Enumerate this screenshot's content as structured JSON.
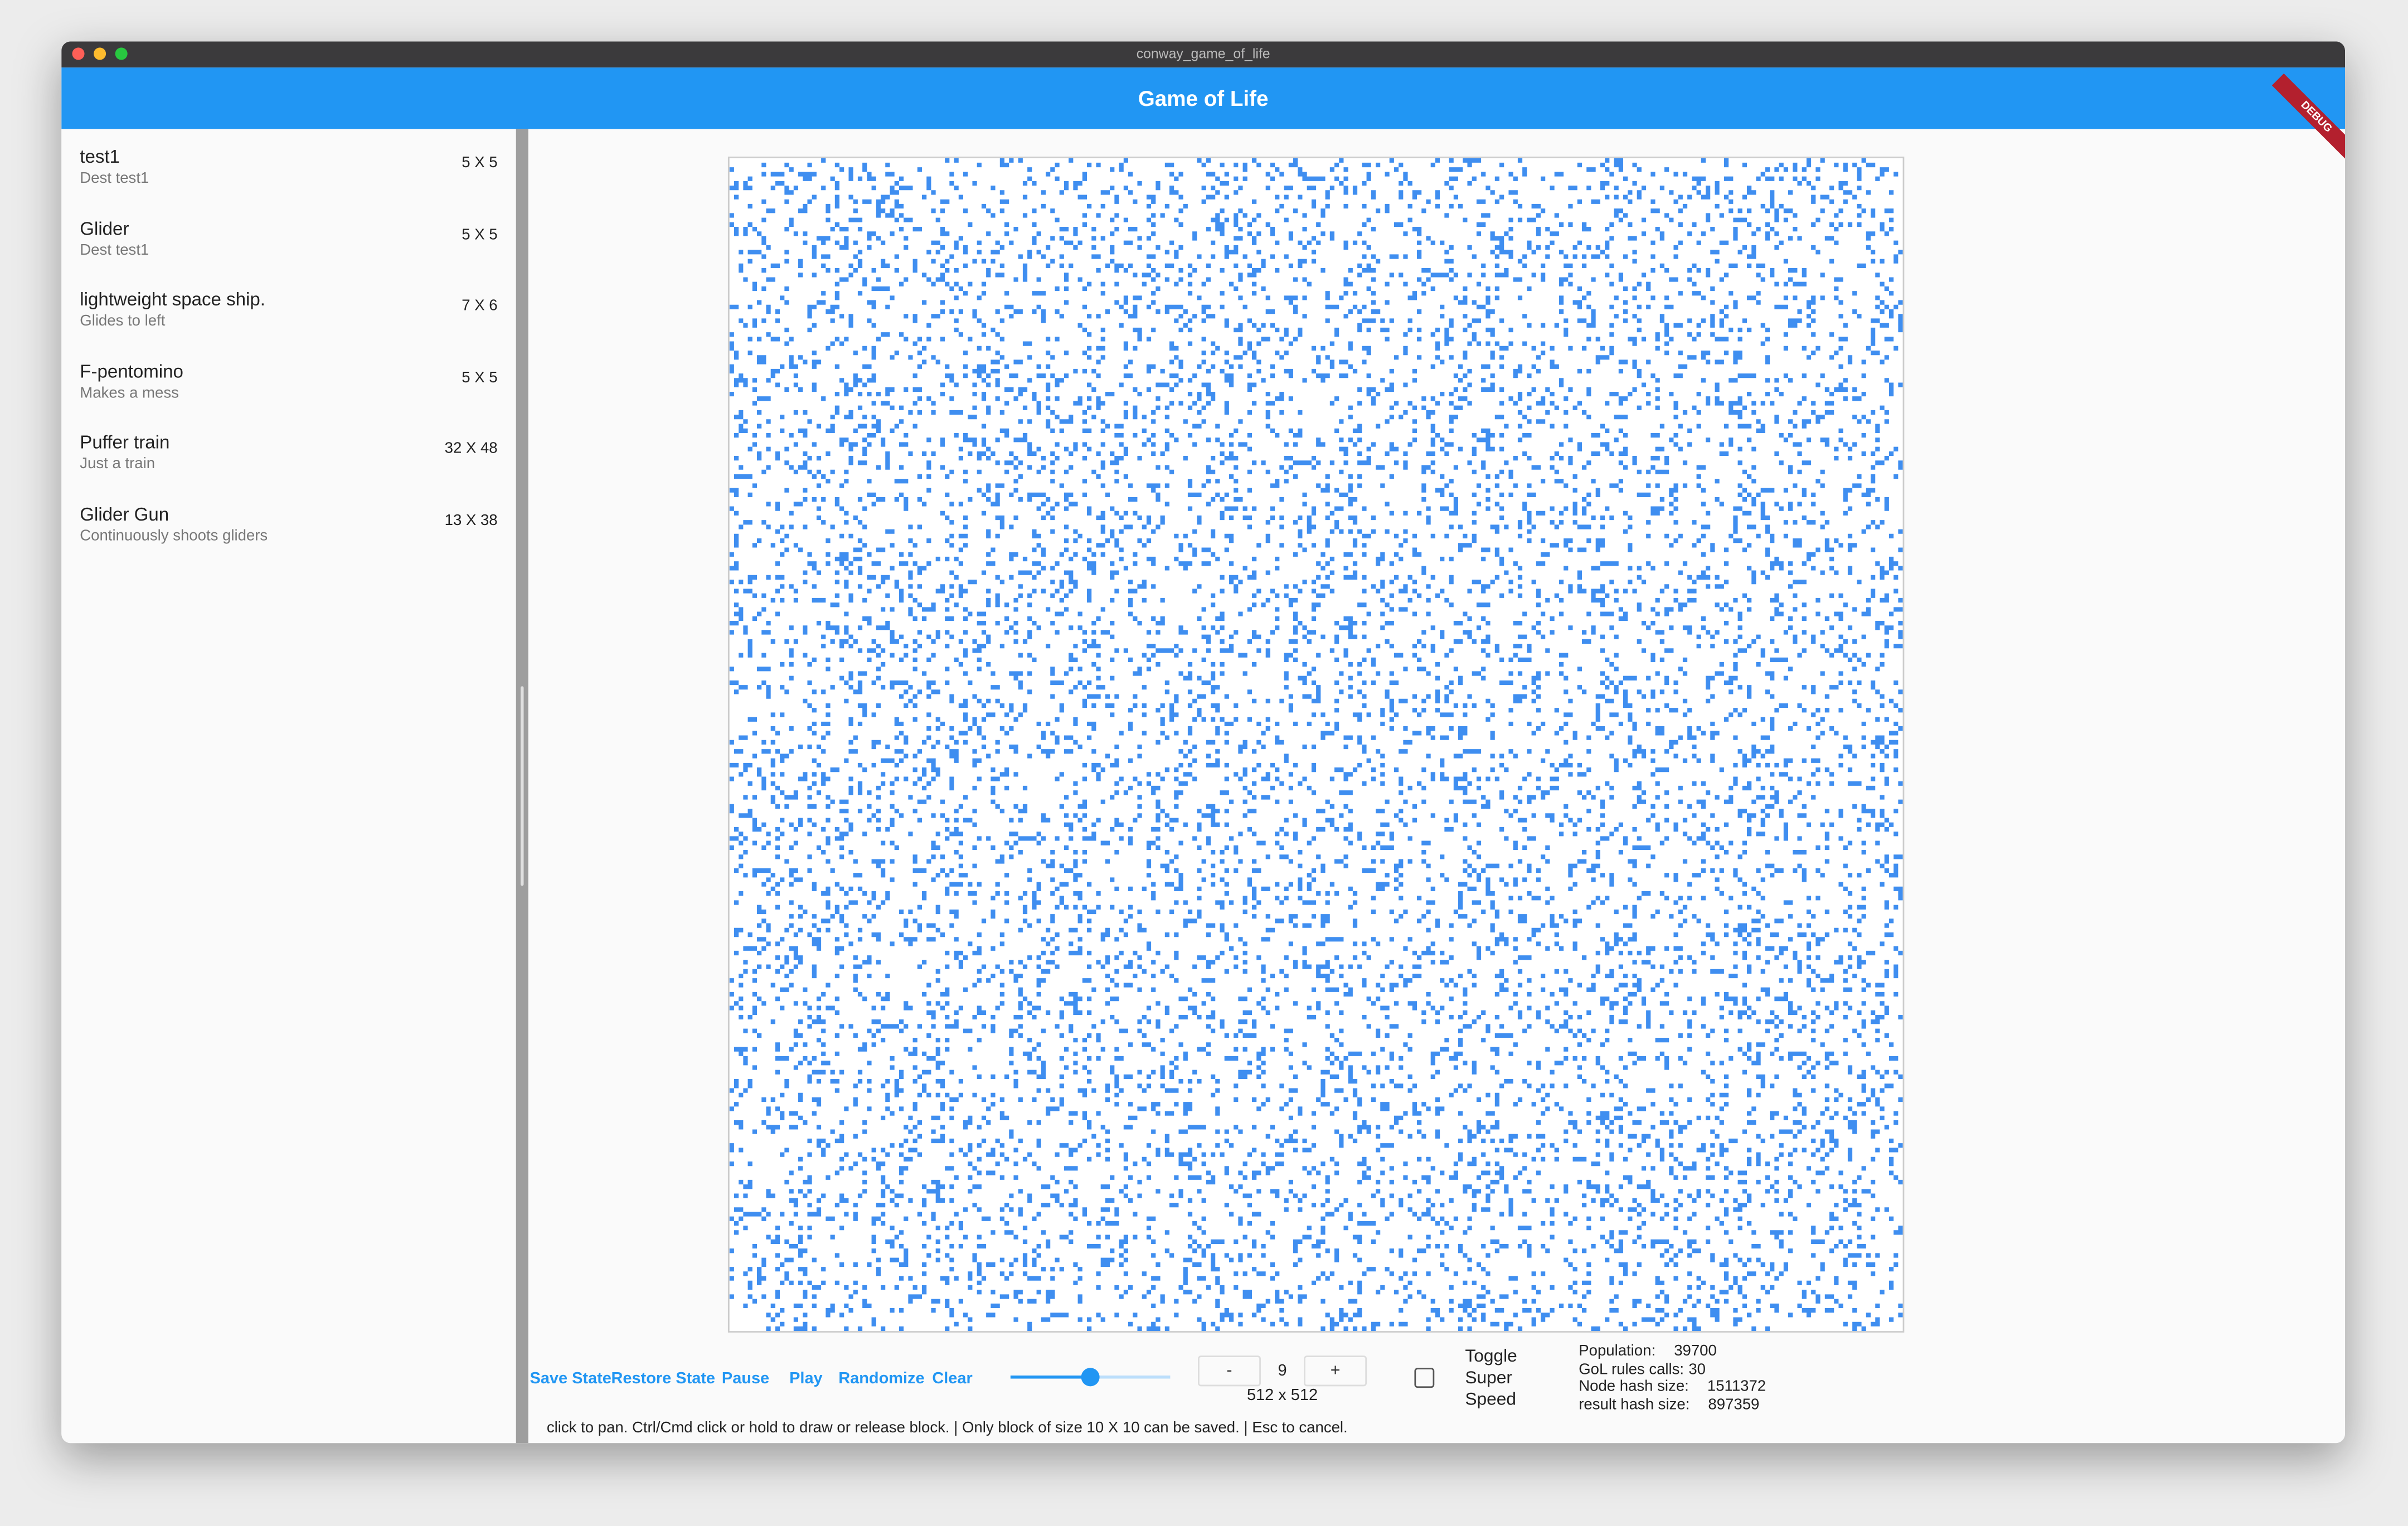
{
  "window_title": "conway_game_of_life",
  "app_bar": {
    "title": "Game of Life",
    "banner": "DEBUG"
  },
  "patterns": [
    {
      "title": "test1",
      "subtitle": "Dest test1",
      "size": "5 X 5"
    },
    {
      "title": "Glider",
      "subtitle": "Dest test1",
      "size": "5 X 5"
    },
    {
      "title": "lightweight space ship.",
      "subtitle": "Glides to left",
      "size": "7 X 6"
    },
    {
      "title": "F-pentomino",
      "subtitle": "Makes a mess",
      "size": "5 X 5"
    },
    {
      "title": "Puffer train",
      "subtitle": "Just a train",
      "size": "32 X 48"
    },
    {
      "title": "Glider Gun",
      "subtitle": "Continuously shoots gliders",
      "size": "13 X 38"
    }
  ],
  "controls": {
    "buttons": [
      "Save State",
      "Restore State",
      "Pause",
      "Play",
      "Randomize",
      "Clear"
    ],
    "minus": "-",
    "level": 9,
    "plus": "+",
    "grid_size": "512 x 512",
    "toggle": [
      "Toggle",
      "Super",
      "Speed"
    ]
  },
  "stats": [
    {
      "label": "Population:",
      "value": 39700
    },
    {
      "label": "GoL rules calls:",
      "value": 30
    },
    {
      "label": "Node hash size:",
      "value": 1511372
    },
    {
      "label": "result hash size:",
      "value": 897359
    }
  ],
  "status": "click to pan. Ctrl/Cmd click or hold to draw or release block. | Only block of size 10 X 10 can be saved. | Esc to cancel."
}
